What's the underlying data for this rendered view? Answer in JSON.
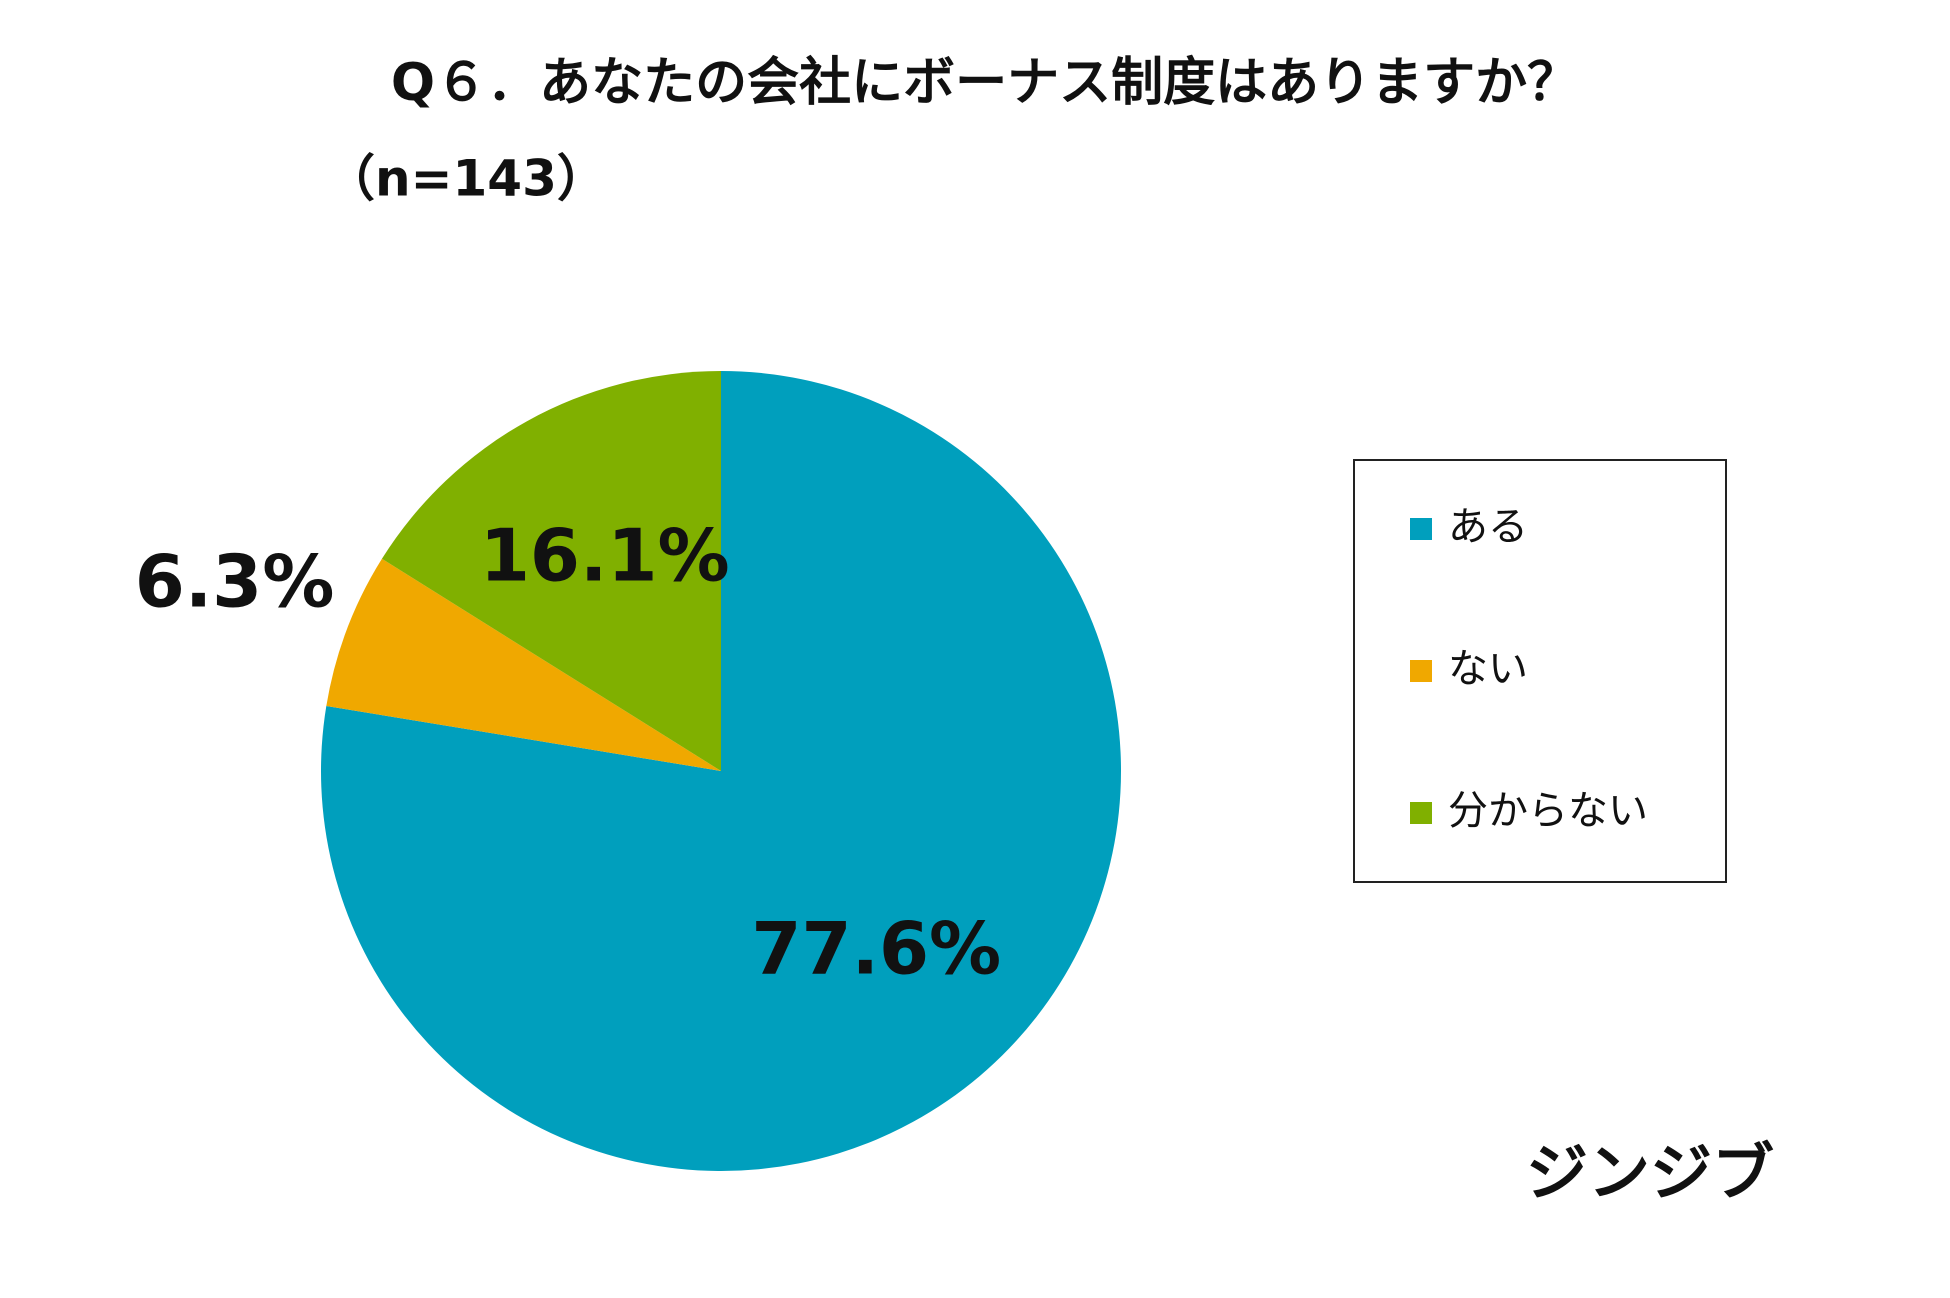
{
  "chart_data": {
    "type": "pie",
    "title": "Q６．あなたの会社にボーナス制度はありますか？",
    "subtitle": "（n=143）",
    "categories": [
      "ある",
      "ない",
      "分からない"
    ],
    "values": [
      77.6,
      6.3,
      16.1
    ],
    "value_labels": [
      "77.6%",
      "6.3%",
      "16.1%"
    ],
    "colors": [
      "#009fbd",
      "#f0a800",
      "#80b000"
    ],
    "legend": "right",
    "logo": "ジンジブ"
  }
}
